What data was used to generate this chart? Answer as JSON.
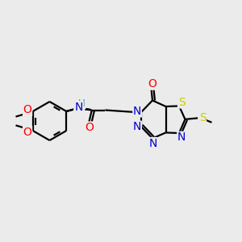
{
  "bg_color": "#ebebeb",
  "bond_color": "#000000",
  "bond_width": 1.6,
  "atom_colors": {
    "C": "#000000",
    "N": "#0000cc",
    "O": "#ff0000",
    "S": "#cccc00",
    "H": "#4a8fa0"
  },
  "font_size": 8.5,
  "figsize": [
    3.0,
    3.0
  ],
  "dpi": 100
}
